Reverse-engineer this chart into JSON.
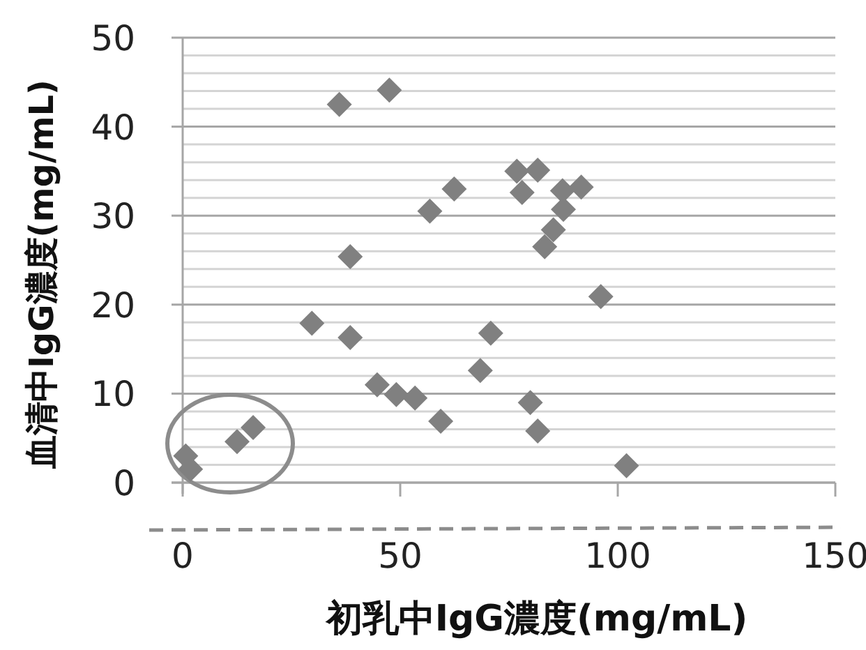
{
  "chart_data": {
    "type": "scatter",
    "xlabel": "初乳中IgG濃度(mg/mL)",
    "ylabel": "血清中IgG濃度(mg/mL)",
    "xlim": [
      0,
      150
    ],
    "xticks": [
      0,
      50,
      100,
      150
    ],
    "ylim": [
      0,
      50
    ],
    "yticks": [
      0,
      {
        "value": 2,
        "label": null
      },
      {
        "value": 4,
        "label": null
      },
      {
        "value": 6,
        "label": null
      },
      {
        "value": 8,
        "label": null
      },
      10,
      {
        "value": 12,
        "label": null
      },
      {
        "value": 14,
        "label": null
      },
      {
        "value": 16,
        "label": null
      },
      {
        "value": 18,
        "label": null
      },
      20,
      {
        "value": 22,
        "label": null
      },
      {
        "value": 24,
        "label": null
      },
      {
        "value": 26,
        "label": null
      },
      {
        "value": 28,
        "label": null
      },
      30,
      {
        "value": 32,
        "label": null
      },
      {
        "value": 34,
        "label": null
      },
      {
        "value": 36,
        "label": null
      },
      {
        "value": 38,
        "label": null
      },
      40,
      {
        "value": 42,
        "label": null
      },
      {
        "value": 44,
        "label": null
      },
      {
        "value": 46,
        "label": null
      },
      {
        "value": 48,
        "label": null
      },
      50
    ],
    "grid": "y",
    "marker": "diamond",
    "series": [
      {
        "color": "#808080",
        "x": [
          36.0,
          47.5,
          62.4,
          56.8,
          38.5,
          29.7,
          38.5,
          70.8,
          68.4,
          44.7,
          49.1,
          53.4,
          59.3,
          0.7,
          1.8,
          12.5,
          16.2,
          76.8,
          81.6,
          78.0,
          87.3,
          91.6,
          87.5,
          85.2,
          83.2,
          96.1,
          79.9,
          81.6,
          102.0
        ],
        "values": [
          42.5,
          44.1,
          33.0,
          30.5,
          25.4,
          17.9,
          16.3,
          16.8,
          12.6,
          11.0,
          9.9,
          9.5,
          6.9,
          3.0,
          1.5,
          4.6,
          6.2,
          35.0,
          35.1,
          32.6,
          32.8,
          33.2,
          30.7,
          28.4,
          26.5,
          20.9,
          9.0,
          5.8,
          1.9
        ]
      }
    ]
  }
}
